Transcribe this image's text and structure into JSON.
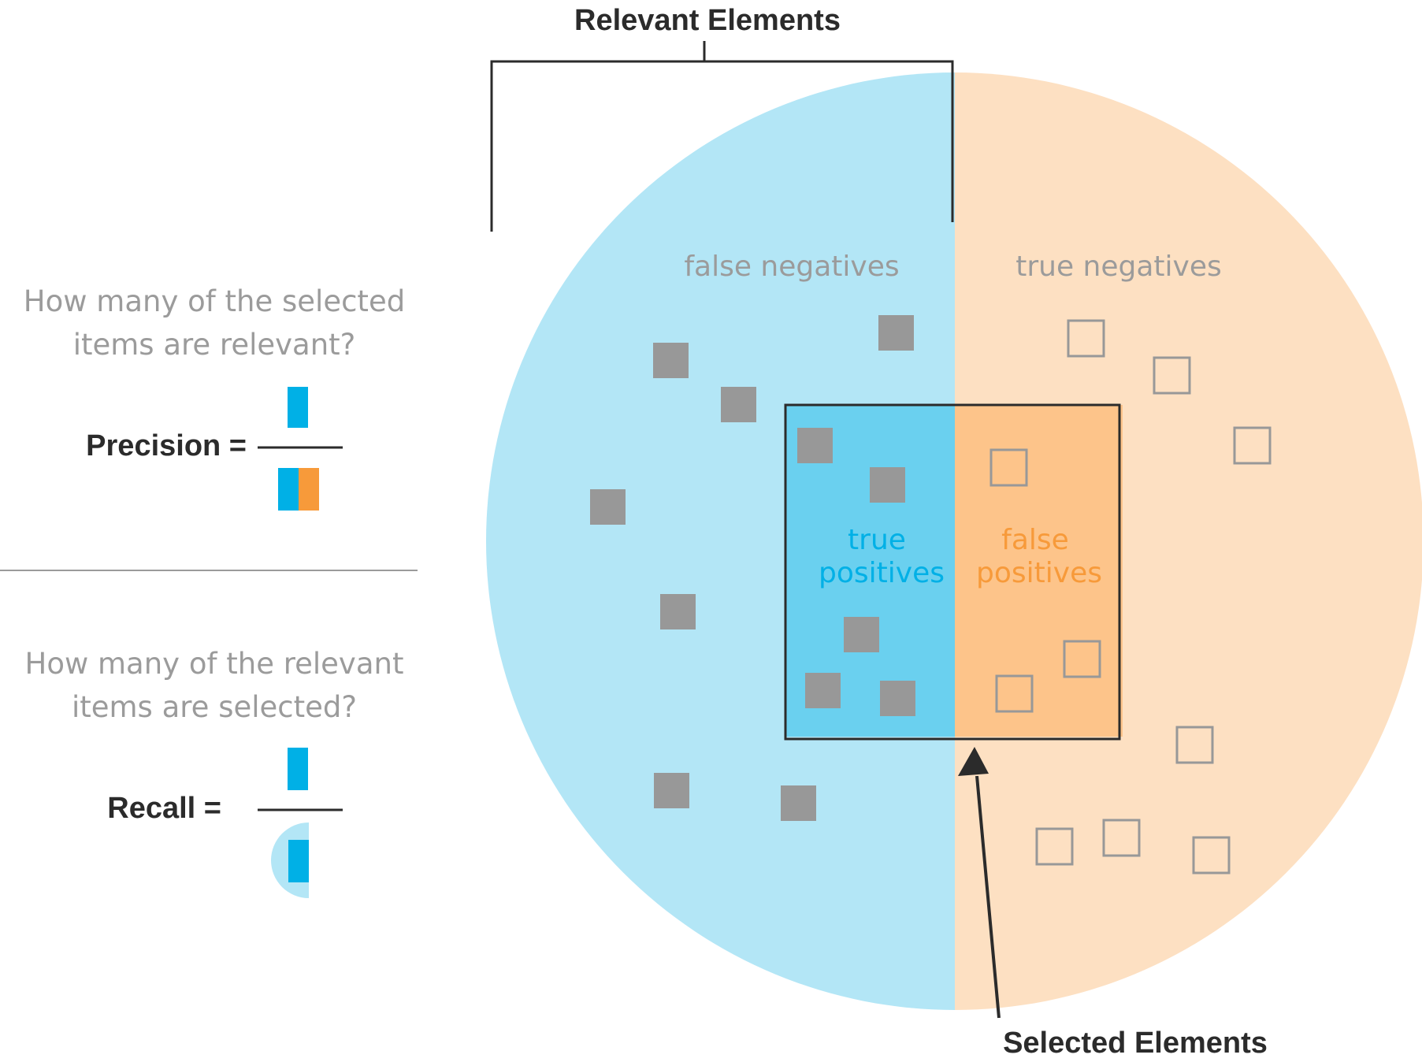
{
  "colors": {
    "relevant_light": "#b3e6f6",
    "relevant_dark": "#00b0e6",
    "relevant_selected": "#6ad0ef",
    "irrelevant_light": "#fde0c2",
    "irrelevant_dark": "#f79a3a",
    "irrelevant_selected": "#fdc48a",
    "item_gray": "#989898",
    "outline": "#2b2b2b",
    "muted_text": "#9b9b9b"
  },
  "labels": {
    "relevant_elements": "Relevant Elements",
    "selected_elements": "Selected Elements",
    "false_negatives": "false negatives",
    "true_negatives": "true negatives",
    "true_positives_1": "true",
    "true_positives_2": "positives",
    "false_positives_1": "false",
    "false_positives_2": "positives"
  },
  "precision": {
    "question_1": "How many of the selected",
    "question_2": "items are relevant?",
    "label": "Precision ="
  },
  "recall": {
    "question_1": "How many of the relevant",
    "question_2": "items are selected?",
    "label": "Recall ="
  },
  "icons": [
    "filled-square-icon",
    "hollow-square-icon",
    "arrow-icon",
    "bracket-icon"
  ]
}
